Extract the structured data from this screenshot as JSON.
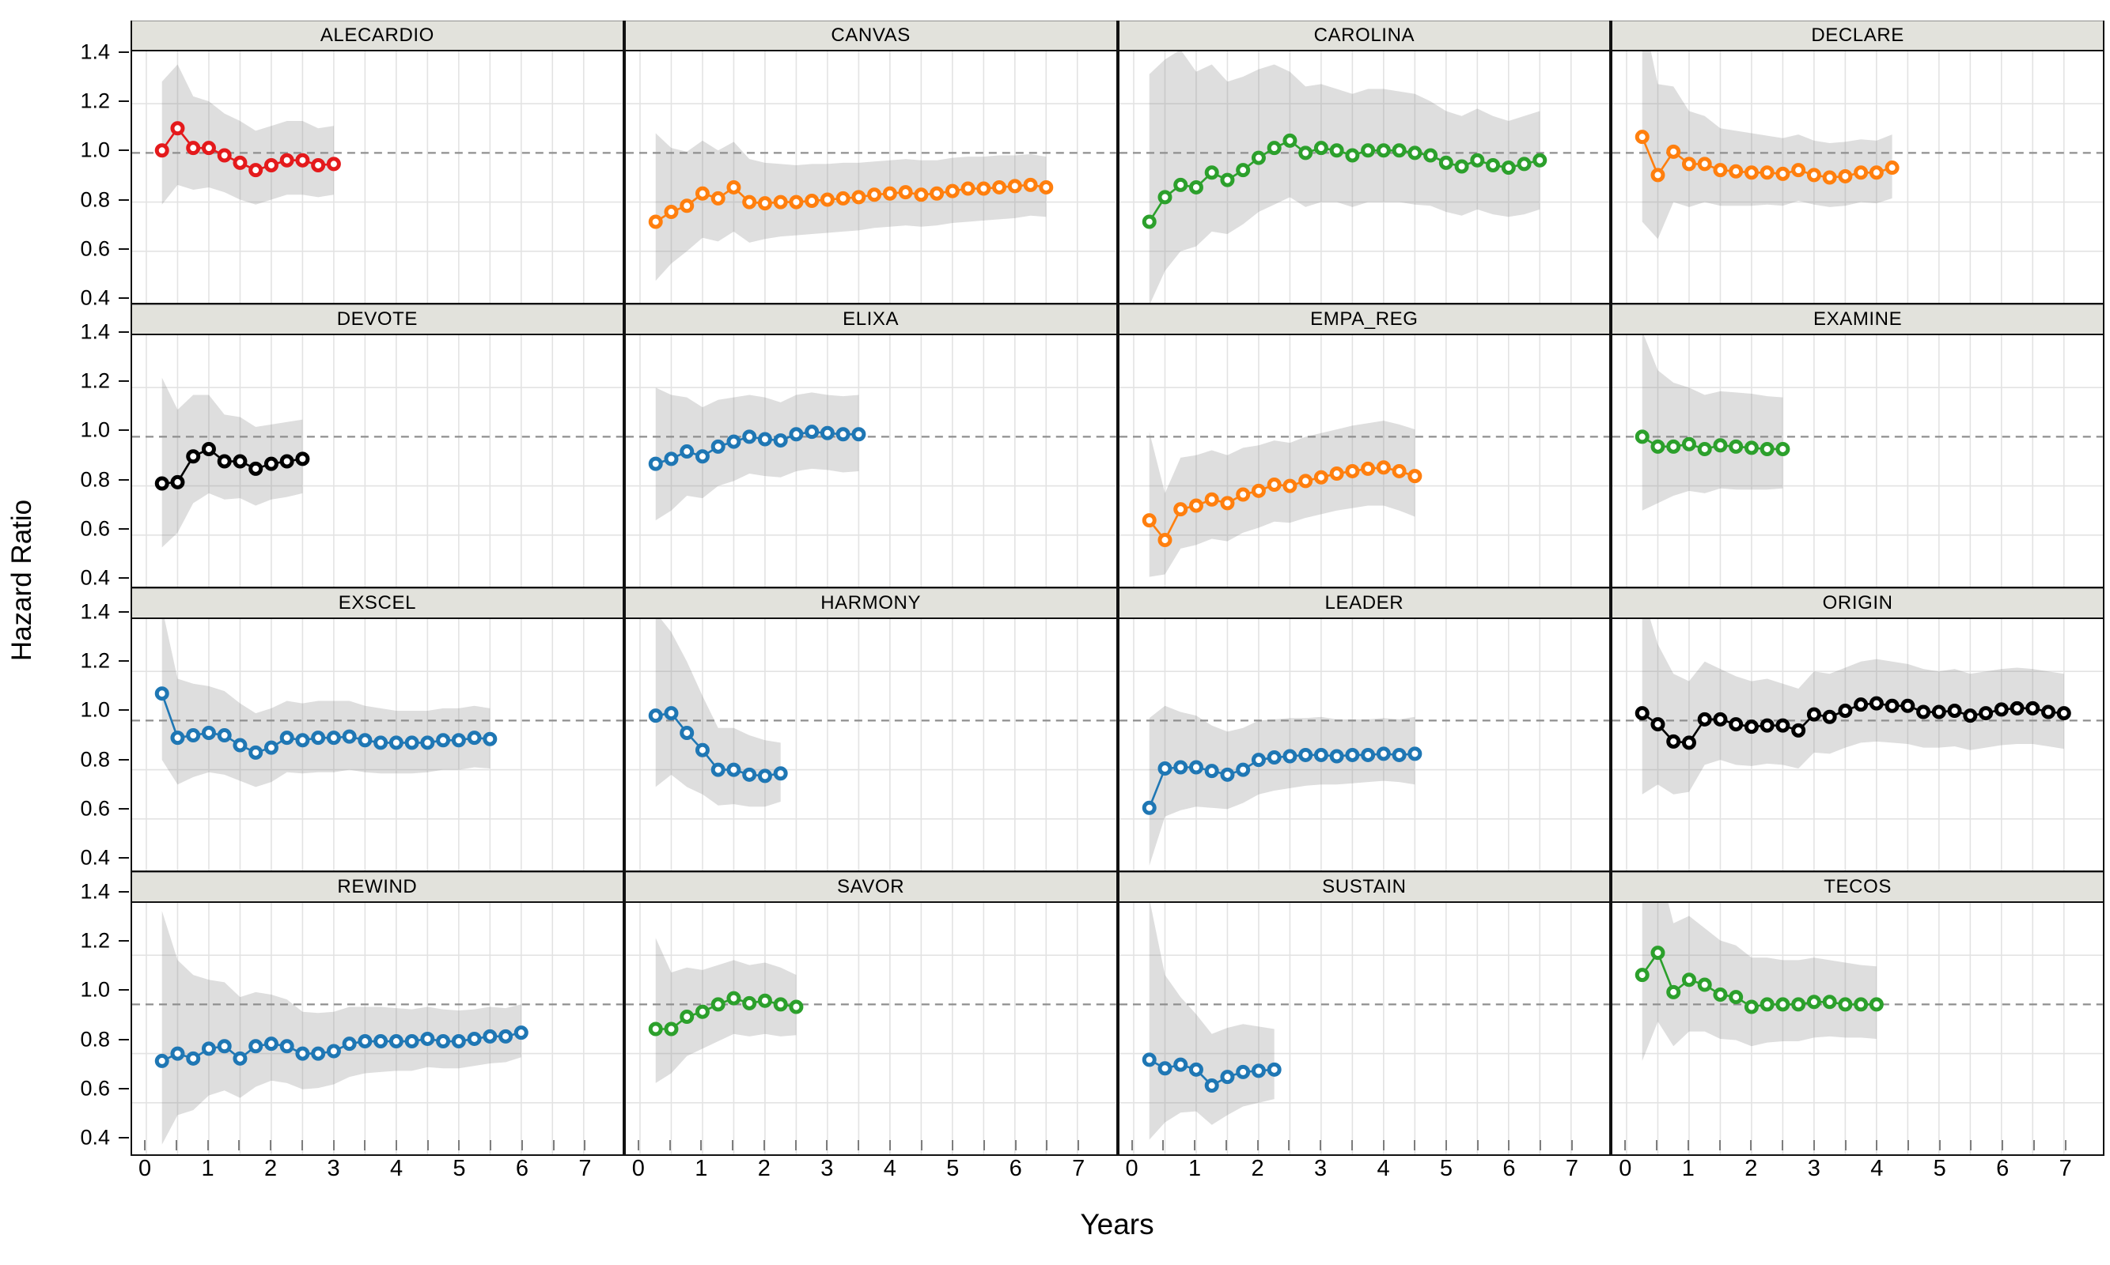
{
  "figure_title": "",
  "palette": {
    "red": "#e41a1c",
    "orange": "#ff7f0e",
    "green": "#2ca02c",
    "blue": "#1f77b4",
    "black": "#000000",
    "band": "rgba(125,125,125,0.25)",
    "grid": "#e3e3e3",
    "dashed_reference": "#8f8f8f",
    "header_bg": "#e2e2dc",
    "panel_border": "#111111"
  },
  "chart_data": {
    "type": "line",
    "layout": "4x4 faceted small multiples, shaded 95% CI bands, dashed reference line at HR=1.0",
    "x": {
      "label": "Years",
      "min": 0,
      "max": 7,
      "major_ticks": [
        "0",
        "1",
        "2",
        "3",
        "4",
        "5",
        "6",
        "7"
      ],
      "minor_tick_step": 0.5
    },
    "y": {
      "label": "Hazard Ratio",
      "min": 0.4,
      "max": 1.4,
      "ticks": [
        "1.4",
        "1.2",
        "1.0",
        "0.8",
        "0.6",
        "0.4"
      ],
      "reference_line": 1.0
    },
    "x_start": 0.25,
    "x_step": 0.25,
    "facets": [
      {
        "name": "ALECARDIO",
        "color": "red",
        "values": [
          1.01,
          1.1,
          1.02,
          1.02,
          0.99,
          0.96,
          0.93,
          0.95,
          0.97,
          0.97,
          0.95,
          0.955
        ],
        "lo": [
          0.79,
          0.87,
          0.85,
          0.86,
          0.84,
          0.81,
          0.79,
          0.81,
          0.83,
          0.83,
          0.82,
          0.83
        ],
        "hi": [
          1.29,
          1.36,
          1.23,
          1.21,
          1.16,
          1.13,
          1.09,
          1.11,
          1.13,
          1.13,
          1.1,
          1.11
        ]
      },
      {
        "name": "CANVAS",
        "color": "orange",
        "values": [
          0.72,
          0.76,
          0.785,
          0.835,
          0.815,
          0.86,
          0.8,
          0.795,
          0.8,
          0.8,
          0.805,
          0.81,
          0.815,
          0.82,
          0.83,
          0.835,
          0.84,
          0.83,
          0.835,
          0.845,
          0.855,
          0.855,
          0.86,
          0.865,
          0.87,
          0.86
        ],
        "lo": [
          0.48,
          0.55,
          0.6,
          0.655,
          0.64,
          0.68,
          0.635,
          0.65,
          0.66,
          0.665,
          0.67,
          0.675,
          0.68,
          0.685,
          0.695,
          0.7,
          0.705,
          0.7,
          0.705,
          0.715,
          0.72,
          0.725,
          0.73,
          0.735,
          0.745,
          0.74
        ],
        "hi": [
          1.08,
          1.02,
          1.005,
          1.05,
          1.01,
          1.045,
          0.975,
          0.96,
          0.955,
          0.95,
          0.955,
          0.955,
          0.96,
          0.96,
          0.965,
          0.97,
          0.975,
          0.97,
          0.97,
          0.98,
          0.985,
          0.985,
          0.99,
          0.99,
          0.995,
          0.985
        ]
      },
      {
        "name": "CAROLINA",
        "color": "green",
        "values": [
          0.72,
          0.82,
          0.87,
          0.86,
          0.92,
          0.89,
          0.93,
          0.98,
          1.02,
          1.05,
          1.0,
          1.02,
          1.01,
          0.99,
          1.01,
          1.01,
          1.01,
          1.0,
          0.99,
          0.96,
          0.945,
          0.97,
          0.95,
          0.94,
          0.955,
          0.97
        ],
        "lo": [
          0.38,
          0.52,
          0.6,
          0.62,
          0.68,
          0.67,
          0.71,
          0.76,
          0.79,
          0.82,
          0.78,
          0.8,
          0.8,
          0.78,
          0.8,
          0.8,
          0.8,
          0.79,
          0.785,
          0.76,
          0.745,
          0.77,
          0.75,
          0.74,
          0.75,
          0.77
        ],
        "hi": [
          1.32,
          1.38,
          1.42,
          1.33,
          1.36,
          1.29,
          1.31,
          1.34,
          1.36,
          1.33,
          1.27,
          1.28,
          1.26,
          1.24,
          1.26,
          1.26,
          1.25,
          1.24,
          1.21,
          1.17,
          1.15,
          1.18,
          1.15,
          1.13,
          1.15,
          1.17
        ]
      },
      {
        "name": "DECLARE",
        "color": "orange",
        "values": [
          1.065,
          0.91,
          1.005,
          0.955,
          0.955,
          0.93,
          0.925,
          0.92,
          0.92,
          0.915,
          0.93,
          0.91,
          0.9,
          0.905,
          0.92,
          0.92,
          0.94
        ],
        "lo": [
          0.72,
          0.65,
          0.8,
          0.78,
          0.8,
          0.785,
          0.785,
          0.785,
          0.79,
          0.785,
          0.805,
          0.79,
          0.78,
          0.785,
          0.8,
          0.795,
          0.815
        ],
        "hi": [
          1.58,
          1.28,
          1.27,
          1.17,
          1.15,
          1.1,
          1.09,
          1.08,
          1.07,
          1.06,
          1.075,
          1.05,
          1.04,
          1.045,
          1.055,
          1.05,
          1.075
        ]
      },
      {
        "name": "DEVOTE",
        "color": "black",
        "values": [
          0.81,
          0.815,
          0.92,
          0.95,
          0.9,
          0.9,
          0.87,
          0.89,
          0.9,
          0.91
        ],
        "lo": [
          0.55,
          0.61,
          0.73,
          0.77,
          0.745,
          0.75,
          0.72,
          0.745,
          0.755,
          0.77
        ],
        "hi": [
          1.24,
          1.11,
          1.17,
          1.17,
          1.09,
          1.08,
          1.04,
          1.05,
          1.06,
          1.07
        ]
      },
      {
        "name": "ELIXA",
        "color": "blue",
        "values": [
          0.89,
          0.91,
          0.94,
          0.92,
          0.96,
          0.98,
          1.0,
          0.99,
          0.985,
          1.01,
          1.02,
          1.015,
          1.01,
          1.01
        ],
        "lo": [
          0.66,
          0.7,
          0.76,
          0.75,
          0.8,
          0.82,
          0.85,
          0.84,
          0.835,
          0.86,
          0.87,
          0.865,
          0.855,
          0.86
        ],
        "hi": [
          1.2,
          1.17,
          1.16,
          1.12,
          1.15,
          1.16,
          1.17,
          1.16,
          1.14,
          1.17,
          1.18,
          1.17,
          1.165,
          1.17
        ]
      },
      {
        "name": "EMPA_REG",
        "color": "orange",
        "values": [
          0.66,
          0.58,
          0.705,
          0.72,
          0.745,
          0.73,
          0.765,
          0.78,
          0.805,
          0.8,
          0.82,
          0.835,
          0.85,
          0.86,
          0.87,
          0.875,
          0.86,
          0.84
        ],
        "lo": [
          0.43,
          0.44,
          0.545,
          0.56,
          0.585,
          0.575,
          0.61,
          0.63,
          0.655,
          0.65,
          0.67,
          0.685,
          0.7,
          0.71,
          0.72,
          0.72,
          0.7,
          0.675
        ],
        "hi": [
          1.02,
          0.77,
          0.915,
          0.925,
          0.945,
          0.925,
          0.955,
          0.965,
          0.985,
          0.975,
          1.0,
          1.015,
          1.03,
          1.045,
          1.055,
          1.065,
          1.05,
          1.03
        ]
      },
      {
        "name": "EXAMINE",
        "color": "green",
        "values": [
          1.0,
          0.96,
          0.96,
          0.97,
          0.95,
          0.965,
          0.96,
          0.955,
          0.95,
          0.95
        ],
        "lo": [
          0.7,
          0.73,
          0.76,
          0.78,
          0.77,
          0.79,
          0.785,
          0.785,
          0.785,
          0.79
        ],
        "hi": [
          1.43,
          1.27,
          1.22,
          1.2,
          1.17,
          1.185,
          1.18,
          1.175,
          1.165,
          1.16
        ]
      },
      {
        "name": "EXSCEL",
        "color": "blue",
        "values": [
          1.11,
          0.93,
          0.94,
          0.95,
          0.94,
          0.9,
          0.87,
          0.89,
          0.93,
          0.92,
          0.93,
          0.93,
          0.935,
          0.92,
          0.91,
          0.91,
          0.91,
          0.91,
          0.92,
          0.92,
          0.93,
          0.925
        ],
        "lo": [
          0.84,
          0.74,
          0.77,
          0.79,
          0.78,
          0.755,
          0.73,
          0.75,
          0.79,
          0.785,
          0.79,
          0.79,
          0.8,
          0.79,
          0.785,
          0.785,
          0.785,
          0.79,
          0.8,
          0.8,
          0.81,
          0.805
        ],
        "hi": [
          1.46,
          1.17,
          1.15,
          1.14,
          1.12,
          1.07,
          1.03,
          1.05,
          1.08,
          1.07,
          1.08,
          1.08,
          1.08,
          1.06,
          1.05,
          1.04,
          1.04,
          1.04,
          1.05,
          1.05,
          1.06,
          1.05
        ]
      },
      {
        "name": "HARMONY",
        "color": "blue",
        "values": [
          1.02,
          1.03,
          0.95,
          0.88,
          0.8,
          0.8,
          0.78,
          0.775,
          0.785
        ],
        "lo": [
          0.73,
          0.78,
          0.73,
          0.7,
          0.655,
          0.66,
          0.65,
          0.65,
          0.67
        ],
        "hi": [
          1.44,
          1.36,
          1.24,
          1.1,
          0.97,
          0.97,
          0.94,
          0.92,
          0.91
        ]
      },
      {
        "name": "LEADER",
        "color": "blue",
        "values": [
          0.645,
          0.805,
          0.81,
          0.81,
          0.795,
          0.78,
          0.8,
          0.84,
          0.85,
          0.855,
          0.86,
          0.86,
          0.855,
          0.86,
          0.86,
          0.865,
          0.86,
          0.865
        ],
        "lo": [
          0.41,
          0.61,
          0.635,
          0.65,
          0.645,
          0.64,
          0.665,
          0.7,
          0.715,
          0.725,
          0.735,
          0.74,
          0.74,
          0.745,
          0.75,
          0.755,
          0.75,
          0.74
        ],
        "hi": [
          1.01,
          1.06,
          1.035,
          1.02,
          0.98,
          0.955,
          0.97,
          1.0,
          1.005,
          1.01,
          1.01,
          1.015,
          1.005,
          1.005,
          1.005,
          1.01,
          1.005,
          1.015
        ]
      },
      {
        "name": "ORIGIN",
        "color": "black",
        "values": [
          1.03,
          0.985,
          0.915,
          0.91,
          1.005,
          1.005,
          0.985,
          0.975,
          0.98,
          0.98,
          0.96,
          1.025,
          1.015,
          1.04,
          1.065,
          1.07,
          1.06,
          1.06,
          1.035,
          1.035,
          1.04,
          1.02,
          1.03,
          1.045,
          1.05,
          1.05,
          1.035,
          1.03
        ],
        "lo": [
          0.7,
          0.74,
          0.7,
          0.71,
          0.82,
          0.84,
          0.82,
          0.815,
          0.825,
          0.82,
          0.805,
          0.87,
          0.865,
          0.89,
          0.91,
          0.915,
          0.91,
          0.905,
          0.89,
          0.89,
          0.895,
          0.88,
          0.89,
          0.9,
          0.905,
          0.905,
          0.895,
          0.885
        ],
        "hi": [
          1.52,
          1.31,
          1.19,
          1.16,
          1.24,
          1.21,
          1.18,
          1.16,
          1.17,
          1.15,
          1.13,
          1.2,
          1.19,
          1.215,
          1.24,
          1.25,
          1.24,
          1.23,
          1.21,
          1.2,
          1.21,
          1.19,
          1.2,
          1.21,
          1.215,
          1.21,
          1.2,
          1.19
        ]
      },
      {
        "name": "REWIND",
        "color": "blue",
        "values": [
          0.77,
          0.8,
          0.78,
          0.82,
          0.83,
          0.78,
          0.83,
          0.84,
          0.83,
          0.8,
          0.8,
          0.81,
          0.84,
          0.85,
          0.85,
          0.85,
          0.85,
          0.86,
          0.85,
          0.85,
          0.86,
          0.87,
          0.87,
          0.885
        ],
        "lo": [
          0.43,
          0.55,
          0.57,
          0.63,
          0.65,
          0.62,
          0.665,
          0.69,
          0.68,
          0.655,
          0.66,
          0.675,
          0.705,
          0.72,
          0.725,
          0.73,
          0.73,
          0.745,
          0.74,
          0.74,
          0.75,
          0.76,
          0.765,
          0.785
        ],
        "hi": [
          1.38,
          1.18,
          1.12,
          1.1,
          1.09,
          1.03,
          1.05,
          1.04,
          1.02,
          0.97,
          0.965,
          0.97,
          0.99,
          0.99,
          0.99,
          0.985,
          0.98,
          0.99,
          0.98,
          0.975,
          0.98,
          0.99,
          0.985,
          1.0
        ]
      },
      {
        "name": "SAVOR",
        "color": "green",
        "values": [
          0.9,
          0.9,
          0.95,
          0.97,
          1.0,
          1.025,
          1.005,
          1.015,
          1.0,
          0.99
        ],
        "lo": [
          0.68,
          0.72,
          0.79,
          0.82,
          0.85,
          0.88,
          0.87,
          0.88,
          0.87,
          0.875
        ],
        "hi": [
          1.27,
          1.13,
          1.15,
          1.14,
          1.16,
          1.18,
          1.16,
          1.17,
          1.15,
          1.12
        ]
      },
      {
        "name": "SUSTAIN",
        "color": "blue",
        "values": [
          0.775,
          0.74,
          0.755,
          0.735,
          0.67,
          0.705,
          0.725,
          0.73,
          0.735
        ],
        "lo": [
          0.45,
          0.52,
          0.56,
          0.565,
          0.51,
          0.55,
          0.585,
          0.6,
          0.615
        ],
        "hi": [
          1.43,
          1.12,
          1.03,
          0.96,
          0.88,
          0.905,
          0.92,
          0.91,
          0.9
        ]
      },
      {
        "name": "TECOS",
        "color": "green",
        "values": [
          1.12,
          1.21,
          1.05,
          1.1,
          1.08,
          1.04,
          1.03,
          0.99,
          1.0,
          1.0,
          1.0,
          1.01,
          1.01,
          1.0,
          1.0,
          1.0
        ],
        "lo": [
          0.77,
          0.93,
          0.83,
          0.89,
          0.89,
          0.86,
          0.855,
          0.83,
          0.845,
          0.85,
          0.85,
          0.865,
          0.87,
          0.865,
          0.865,
          0.86
        ],
        "hi": [
          1.64,
          1.58,
          1.33,
          1.36,
          1.31,
          1.26,
          1.24,
          1.19,
          1.19,
          1.18,
          1.18,
          1.19,
          1.18,
          1.17,
          1.16,
          1.155
        ]
      }
    ]
  }
}
